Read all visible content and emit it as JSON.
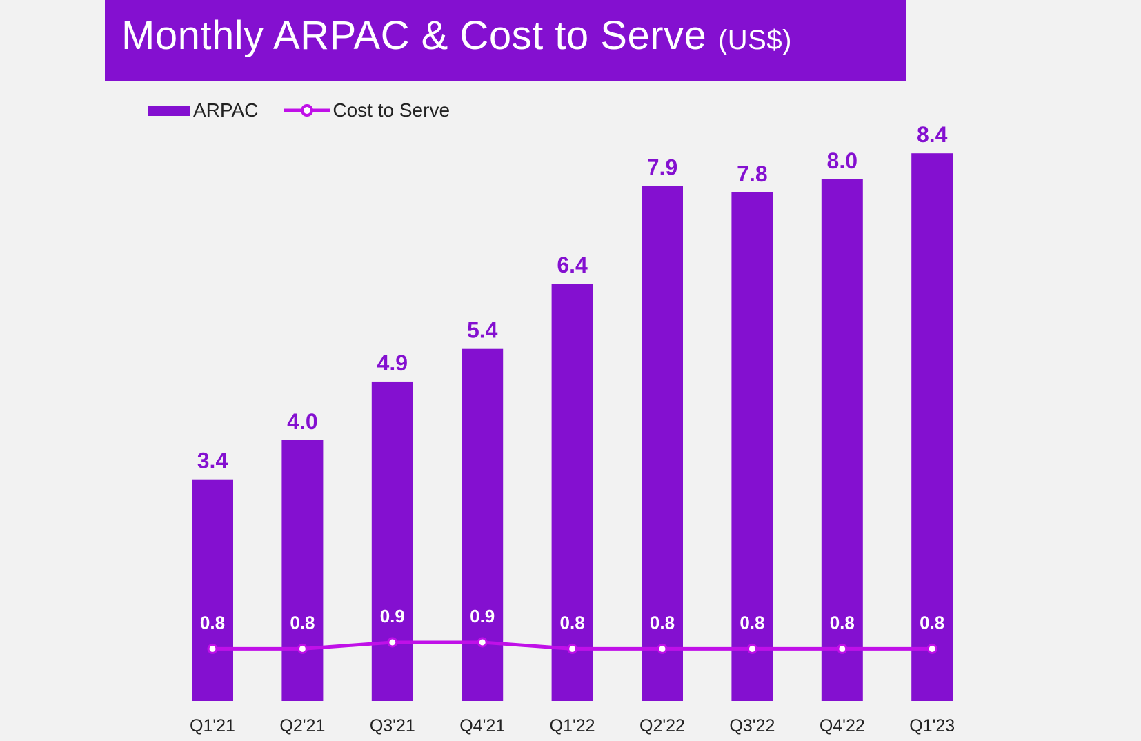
{
  "header": {
    "title": "Monthly ARPAC & Cost to Serve",
    "unit": "(US$)"
  },
  "colors": {
    "arpac": "#8410d0",
    "cost_line": "#c010e8",
    "background": "#f2f2f2",
    "header": "#8410d0"
  },
  "chart_data": {
    "type": "bar+line",
    "title": "Monthly ARPAC & Cost to Serve (US$)",
    "categories": [
      "Q1'21",
      "Q2'21",
      "Q3'21",
      "Q4'21",
      "Q1'22",
      "Q2'22",
      "Q3'22",
      "Q4'22",
      "Q1'23"
    ],
    "series": [
      {
        "name": "ARPAC",
        "type": "bar",
        "values": [
          3.4,
          4.0,
          4.9,
          5.4,
          6.4,
          7.9,
          7.8,
          8.0,
          8.4
        ],
        "labels": [
          "3.4",
          "4.0",
          "4.9",
          "5.4",
          "6.4",
          "7.9",
          "7.8",
          "8.0",
          "8.4"
        ]
      },
      {
        "name": "Cost to Serve",
        "type": "line",
        "values": [
          0.8,
          0.8,
          0.9,
          0.9,
          0.8,
          0.8,
          0.8,
          0.8,
          0.8
        ],
        "labels": [
          "0.8",
          "0.8",
          "0.9",
          "0.9",
          "0.8",
          "0.8",
          "0.8",
          "0.8",
          "0.8"
        ]
      }
    ],
    "ylim": [
      0,
      8.4
    ],
    "grid": false,
    "legend": "top-left"
  }
}
